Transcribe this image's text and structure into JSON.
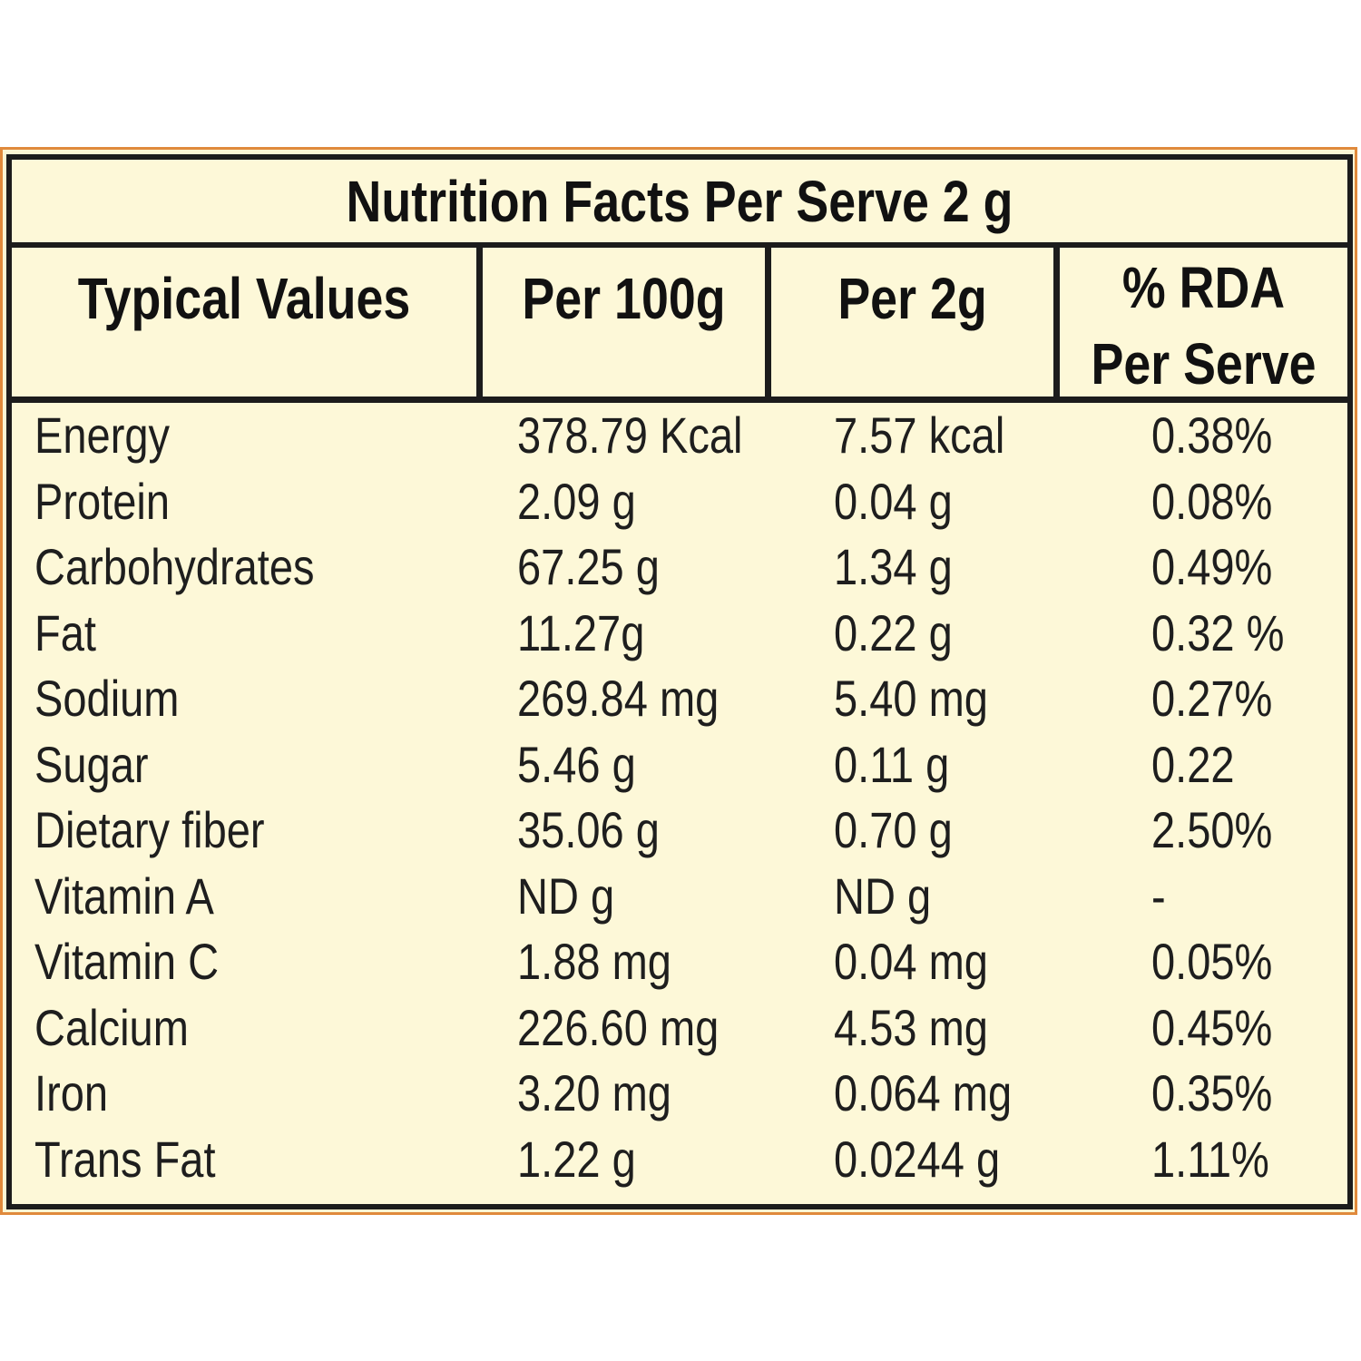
{
  "title": "Nutrition Facts Per Serve 2 g",
  "headers": {
    "typical_values": "Typical Values",
    "per_100g": "Per 100g",
    "per_2g": "Per 2g",
    "rda_line1": "% RDA",
    "rda_line2": "Per Serve"
  },
  "rows": [
    {
      "name": "Energy",
      "per_100g": "378.79 Kcal",
      "per_2g": "7.57 kcal",
      "rda": "0.38%"
    },
    {
      "name": "Protein",
      "per_100g": "2.09 g",
      "per_2g": "0.04 g",
      "rda": "0.08%"
    },
    {
      "name": "Carbohydrates",
      "per_100g": "67.25 g",
      "per_2g": "1.34 g",
      "rda": "0.49%"
    },
    {
      "name": "Fat",
      "per_100g": "11.27g",
      "per_2g": "0.22 g",
      "rda": "0.32 %"
    },
    {
      "name": "Sodium",
      "per_100g": "269.84 mg",
      "per_2g": "5.40 mg",
      "rda": "0.27%"
    },
    {
      "name": "Sugar",
      "per_100g": "5.46 g",
      "per_2g": "0.11 g",
      "rda": "0.22"
    },
    {
      "name": "Dietary fiber",
      "per_100g": "35.06 g",
      "per_2g": "0.70 g",
      "rda": "2.50%"
    },
    {
      "name": "Vitamin A",
      "per_100g": "ND g",
      "per_2g": "ND g",
      "rda": "-"
    },
    {
      "name": "Vitamin C",
      "per_100g": "1.88 mg",
      "per_2g": "0.04 mg",
      "rda": "0.05%"
    },
    {
      "name": "Calcium",
      "per_100g": "226.60 mg",
      "per_2g": "4.53 mg",
      "rda": "0.45%"
    },
    {
      "name": "Iron",
      "per_100g": "3.20 mg",
      "per_2g": "0.064 mg",
      "rda": "0.35%"
    },
    {
      "name": "Trans Fat",
      "per_100g": "1.22 g",
      "per_2g": "0.0244 g",
      "rda": "1.11%"
    }
  ],
  "colors": {
    "background": "#fdf8d8",
    "border": "#1c1c1c",
    "outer_border": "#e08a3c",
    "text": "#1e1e1e"
  }
}
